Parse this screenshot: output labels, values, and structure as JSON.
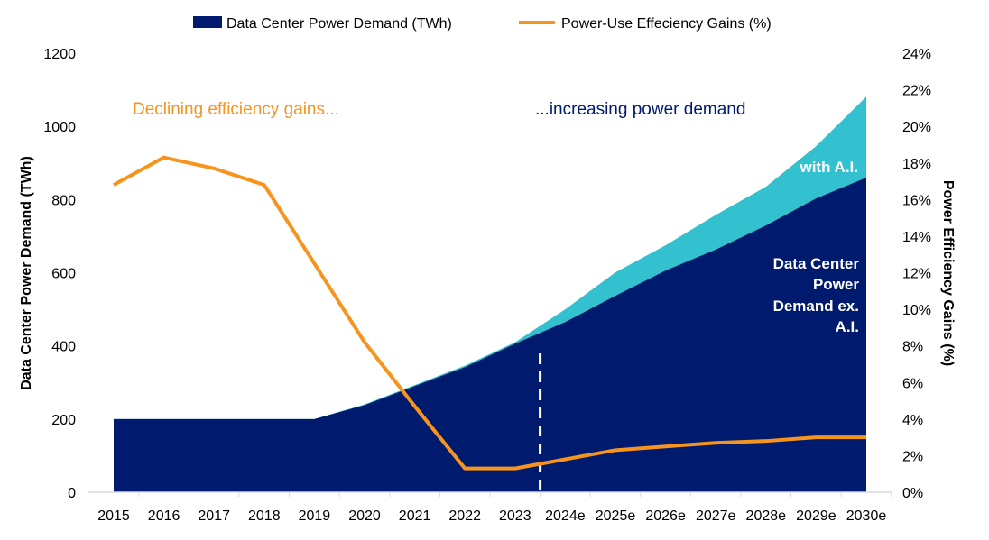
{
  "chart_data": {
    "type": "area",
    "categories": [
      "2015",
      "2016",
      "2017",
      "2018",
      "2019",
      "2020",
      "2021",
      "2022",
      "2023",
      "2024e",
      "2025e",
      "2026e",
      "2027e",
      "2028e",
      "2029e",
      "2030e"
    ],
    "series": [
      {
        "name": "Data Center Power Demand (TWh)",
        "kind": "area",
        "axis": "left",
        "color": "#001a6e",
        "values": [
          200,
          200,
          200,
          200,
          200,
          238,
          290,
          342,
          406,
          465,
          537,
          606,
          663,
          729,
          803,
          860
        ]
      },
      {
        "name": "with A.I.",
        "kind": "area",
        "axis": "left",
        "color": "#33c1d0",
        "values": [
          200,
          200,
          200,
          200,
          200,
          240,
          293,
          346,
          410,
          500,
          601,
          675,
          758,
          835,
          946,
          1081
        ]
      },
      {
        "name": "Power-Use Effeciency Gains (%)",
        "kind": "line",
        "axis": "right",
        "color": "#f7941d",
        "values": [
          16.8,
          18.3,
          17.7,
          16.8,
          12.5,
          8.2,
          4.7,
          1.3,
          1.3,
          1.8,
          2.3,
          2.5,
          2.7,
          2.8,
          3.0,
          3.0
        ]
      }
    ],
    "legend": [
      {
        "label": "Data Center Power Demand (TWh)",
        "color": "#001a6e",
        "kind": "box"
      },
      {
        "label": "Power-Use Effeciency Gains (%)",
        "color": "#f7941d",
        "kind": "line"
      }
    ],
    "legend_position": "top-center",
    "ylabel": "Data Center Power Demand (TWh)",
    "y2label": "Power Efficiency Gains (%)",
    "ylim": [
      0,
      1200
    ],
    "yticks": [
      "0",
      "200",
      "400",
      "600",
      "800",
      "1000",
      "1200"
    ],
    "y2lim": [
      0,
      24
    ],
    "y2ticks": [
      "0%",
      "2%",
      "4%",
      "6%",
      "8%",
      "10%",
      "12%",
      "14%",
      "16%",
      "18%",
      "20%",
      "22%",
      "24%"
    ],
    "forecast_divider_after": "2023",
    "annotations": {
      "left": "Declining  efficiency gains...",
      "right": "...increasing power demand",
      "with_ai": "with A.I.",
      "ex_ai": [
        "Data Center",
        "Power",
        "Demand ex.",
        "A.I."
      ]
    },
    "grid": false
  }
}
